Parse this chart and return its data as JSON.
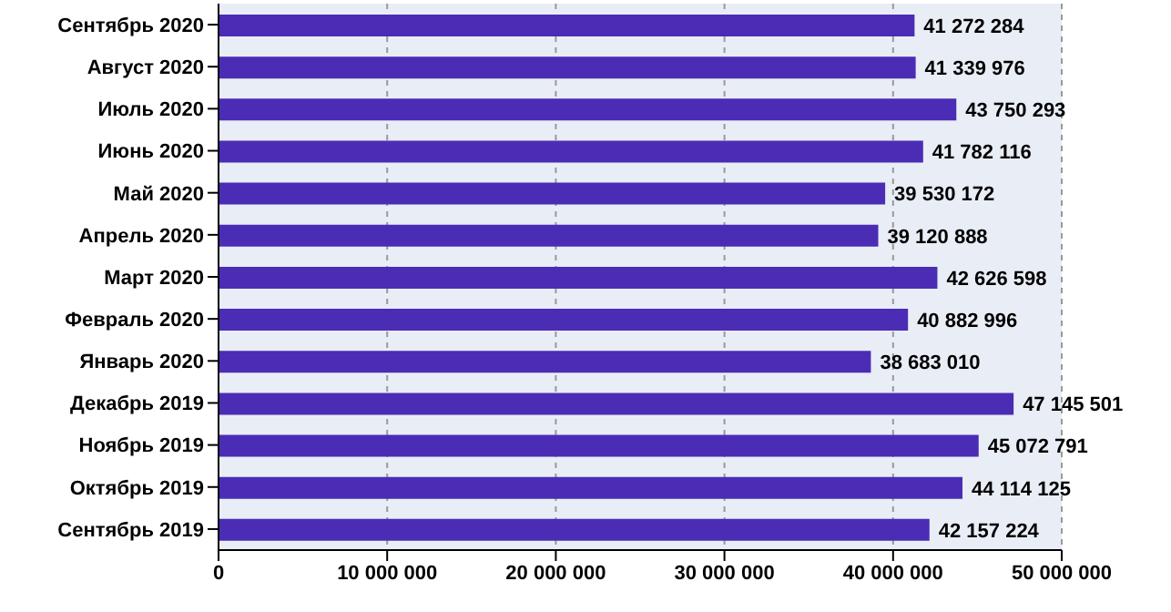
{
  "chart_data": {
    "type": "bar",
    "orientation": "horizontal",
    "categories": [
      "Сентябрь  2020",
      "Август  2020",
      "Июль  2020",
      "Июнь  2020",
      "Май  2020",
      "Апрель  2020",
      "Март  2020",
      "Февраль  2020",
      "Январь  2020",
      "Декабрь  2019",
      "Ноябрь  2019",
      "Октябрь  2019",
      "Сентябрь  2019"
    ],
    "values": [
      41272284,
      41339976,
      43750293,
      41782116,
      39530172,
      39120888,
      42626598,
      40882996,
      38683010,
      47145501,
      45072791,
      44114125,
      42157224
    ],
    "value_labels": [
      "41 272 284",
      "41 339 976",
      "43 750 293",
      "41 782 116",
      "39 530 172",
      "39 120 888",
      "42 626 598",
      "40 882 996",
      "38 683 010",
      "47 145 501",
      "45 072 791",
      "44 114 125",
      "42 157 224"
    ],
    "color": "#4a2db4",
    "xlim": [
      0,
      50000000
    ],
    "xticks": [
      0,
      {
        "value": 10000000,
        "label": "10 000 000"
      },
      {
        "value": 20000000,
        "label": "20 000 000"
      },
      {
        "value": 30000000,
        "label": "30 000 000"
      },
      {
        "value": 40000000,
        "label": "40 000 000"
      },
      {
        "value": 50000000,
        "label": "50 000 000"
      }
    ],
    "grid": "x"
  }
}
